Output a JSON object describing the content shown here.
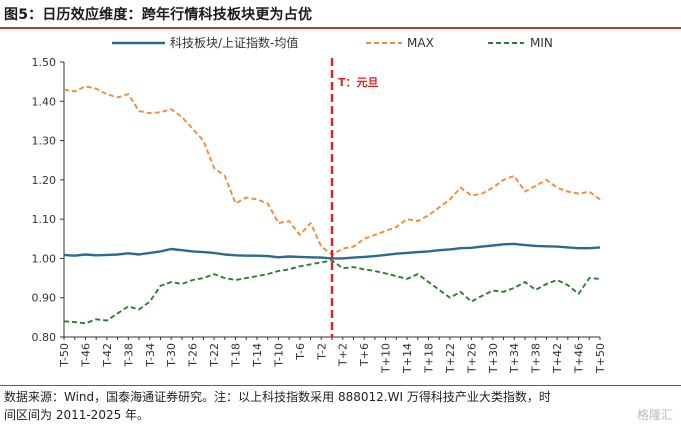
{
  "page": {
    "title": "图5：日历效应维度：跨年行情科技板块更为占优",
    "note_line1": "数据来源：Wind，国泰海通证券研究。注：以上科技指数采用 888012.WI 万得科技产业大类指数，时",
    "note_line2": "间区间为 2011-2025 年。",
    "watermark": "格隆汇"
  },
  "colors": {
    "ratio": "#2e6a8e",
    "max": "#f08a3c",
    "min": "#2e7d32",
    "marker": "#e02020",
    "axis": "#333333"
  },
  "chart_data": {
    "type": "line",
    "title": "",
    "xlabel": "",
    "ylabel": "",
    "ylim": [
      0.8,
      1.5
    ],
    "yticks": [
      "0.80",
      "0.90",
      "1.00",
      "1.10",
      "1.20",
      "1.30",
      "1.40",
      "1.50"
    ],
    "xticks": [
      "T-50",
      "T-46",
      "T-42",
      "T-38",
      "T-34",
      "T-30",
      "T-26",
      "T-22",
      "T-18",
      "T-14",
      "T-10",
      "T-6",
      "T-2",
      "T+2",
      "T+6",
      "T+10",
      "T+14",
      "T+18",
      "T+22",
      "T+26",
      "T+30",
      "T+34",
      "T+38",
      "T+42",
      "T+46",
      "T+50"
    ],
    "grid": false,
    "legend": "top",
    "annotation": {
      "x": 0,
      "text": "T：元旦"
    },
    "x": [
      -50,
      -48,
      -46,
      -44,
      -42,
      -40,
      -38,
      -36,
      -34,
      -32,
      -30,
      -28,
      -26,
      -24,
      -22,
      -20,
      -18,
      -16,
      -14,
      -12,
      -10,
      -8,
      -6,
      -4,
      -2,
      0,
      2,
      4,
      6,
      8,
      10,
      12,
      14,
      16,
      18,
      20,
      22,
      24,
      26,
      28,
      30,
      32,
      34,
      36,
      38,
      40,
      42,
      44,
      46,
      48,
      50
    ],
    "series": [
      {
        "name": "科技板块/上证指数-均值",
        "style": "solid",
        "values": [
          1.009,
          1.007,
          1.01,
          1.008,
          1.009,
          1.01,
          1.013,
          1.01,
          1.014,
          1.018,
          1.024,
          1.021,
          1.018,
          1.016,
          1.014,
          1.01,
          1.008,
          1.007,
          1.007,
          1.006,
          1.003,
          1.005,
          1.004,
          1.003,
          1.002,
          1.0,
          1.0,
          1.002,
          1.004,
          1.006,
          1.009,
          1.012,
          1.014,
          1.016,
          1.018,
          1.021,
          1.023,
          1.026,
          1.027,
          1.03,
          1.033,
          1.036,
          1.037,
          1.034,
          1.032,
          1.031,
          1.03,
          1.028,
          1.026,
          1.026,
          1.028
        ]
      },
      {
        "name": "MAX",
        "style": "dashed",
        "values": [
          1.43,
          1.425,
          1.438,
          1.432,
          1.418,
          1.41,
          1.418,
          1.375,
          1.37,
          1.372,
          1.38,
          1.36,
          1.33,
          1.3,
          1.23,
          1.21,
          1.14,
          1.155,
          1.15,
          1.14,
          1.09,
          1.095,
          1.06,
          1.09,
          1.03,
          1.01,
          1.025,
          1.03,
          1.05,
          1.06,
          1.07,
          1.08,
          1.1,
          1.095,
          1.11,
          1.13,
          1.15,
          1.18,
          1.16,
          1.165,
          1.18,
          1.2,
          1.21,
          1.17,
          1.185,
          1.2,
          1.18,
          1.17,
          1.165,
          1.17,
          1.15
        ]
      },
      {
        "name": "MIN",
        "style": "dashed",
        "values": [
          0.84,
          0.838,
          0.835,
          0.845,
          0.842,
          0.86,
          0.878,
          0.87,
          0.89,
          0.93,
          0.94,
          0.935,
          0.945,
          0.95,
          0.96,
          0.95,
          0.945,
          0.95,
          0.955,
          0.96,
          0.968,
          0.972,
          0.98,
          0.985,
          0.99,
          0.995,
          0.975,
          0.978,
          0.972,
          0.968,
          0.962,
          0.955,
          0.948,
          0.96,
          0.94,
          0.92,
          0.9,
          0.915,
          0.89,
          0.905,
          0.918,
          0.915,
          0.925,
          0.94,
          0.92,
          0.935,
          0.945,
          0.932,
          0.91,
          0.95,
          0.948
        ]
      }
    ]
  }
}
